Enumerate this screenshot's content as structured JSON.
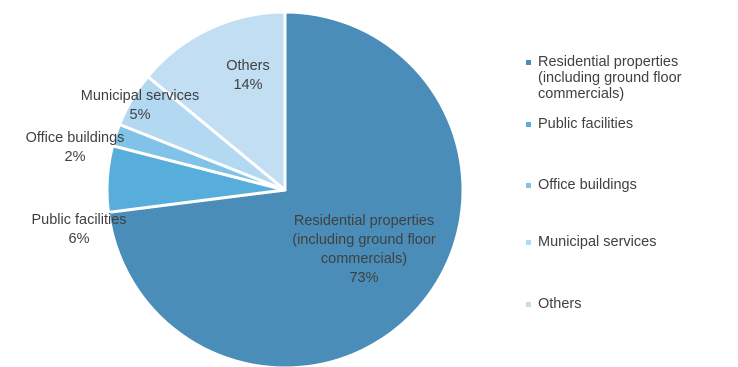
{
  "chart_data": {
    "type": "pie",
    "title": "",
    "legend_position": "right",
    "slices": [
      {
        "label": "Residential properties\n(including ground floor\ncommercials)",
        "value": 73,
        "value_label": "73%",
        "color": "#4a8db8"
      },
      {
        "label": "Public facilities",
        "value": 6,
        "value_label": "6%",
        "color": "#58aedb"
      },
      {
        "label": "Office buildings",
        "value": 2,
        "value_label": "2%",
        "color": "#80c2e8"
      },
      {
        "label": "Municipal services",
        "value": 5,
        "value_label": "5%",
        "color": "#b3d9f2"
      },
      {
        "label": "Others",
        "value": 14,
        "value_label": "14%",
        "color": "#c1def3"
      }
    ]
  }
}
